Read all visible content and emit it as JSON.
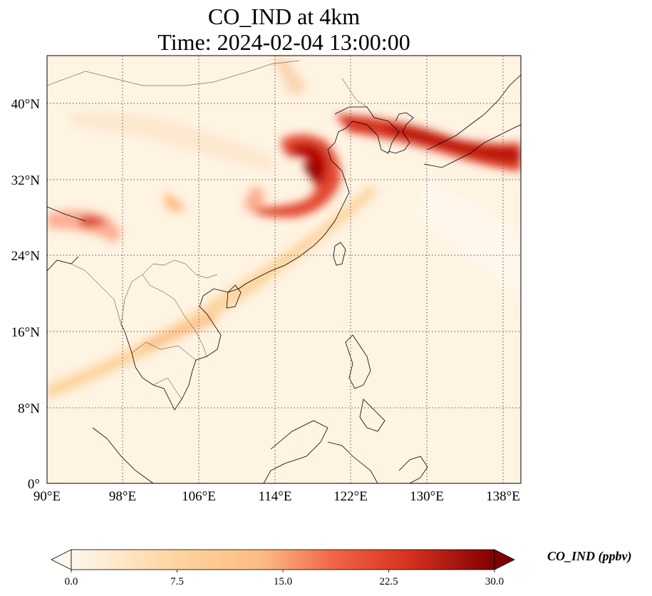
{
  "figure": {
    "title_line1": "CO_IND at 4km",
    "title_line2": "Time: 2024-02-04 13:00:00",
    "variable": "CO_IND",
    "height_level": "4km",
    "time": "2024-02-04 13:00:00"
  },
  "map": {
    "projection": "PlateCarree",
    "lon_range": [
      90,
      139
    ],
    "lat_range": [
      0,
      44
    ],
    "gridlines": "dotted",
    "features": [
      "coastlines",
      "country borders"
    ],
    "lon_ticks": [
      "90°E",
      "98°E",
      "106°E",
      "114°E",
      "122°E",
      "130°E",
      "138°E"
    ],
    "lat_ticks": [
      "0°",
      "8°N",
      "16°N",
      "24°N",
      "32°N",
      "40°N"
    ],
    "colormap": "OrRd"
  },
  "colorbar": {
    "label": "CO_IND (ppbv)",
    "min": 0.0,
    "max": 30.0,
    "extend": "both",
    "ticks": [
      "0.0",
      "7.5",
      "15.0",
      "22.5",
      "30.0"
    ]
  },
  "colors": {
    "background_field": "#fff3e2",
    "low": "#fff7ec",
    "mid": "#fdbb84",
    "high": "#d7301f",
    "max": "#7f0000"
  }
}
